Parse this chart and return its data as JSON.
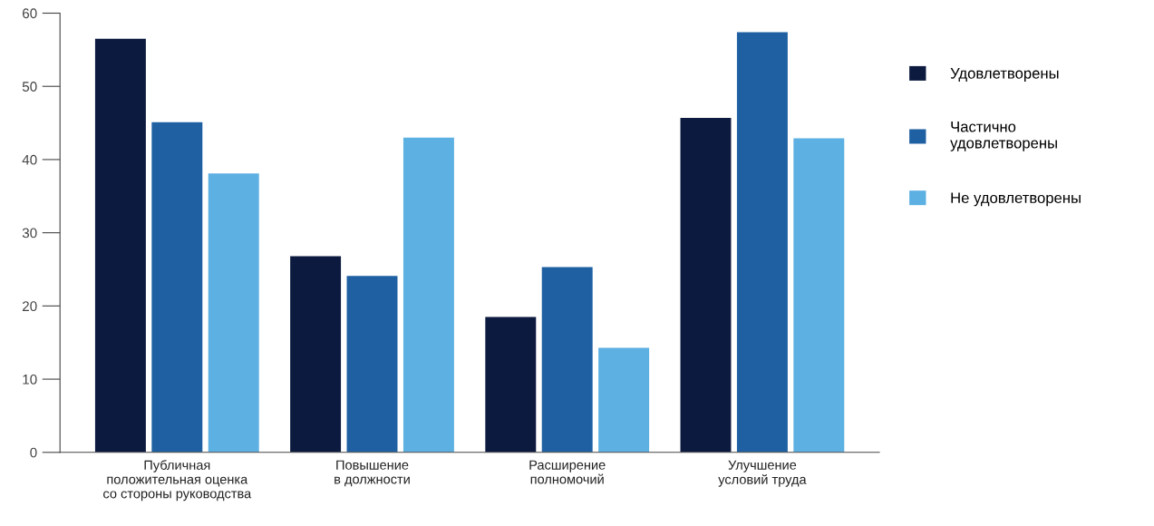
{
  "chart_data": {
    "type": "bar",
    "categories": [
      "Публичная\nположительная оценка\nсо стороны руководства",
      "Повышение\nв должности",
      "Расширение\nполномочий",
      "Улучшение\nусловий труда"
    ],
    "series": [
      {
        "name": "Удовлетворены",
        "color": "#0b1a3e",
        "values": [
          56.5,
          26.8,
          18.5,
          45.7
        ]
      },
      {
        "name": "Частично\nудовлетворены",
        "color": "#1f60a2",
        "values": [
          45.1,
          24.1,
          25.3,
          57.4
        ]
      },
      {
        "name": "Не удовлетворены",
        "color": "#5cb0e2",
        "values": [
          38.1,
          43.0,
          14.3,
          42.9
        ]
      }
    ],
    "ylim": [
      0,
      60
    ],
    "yticks": [
      0,
      10,
      20,
      30,
      40,
      50,
      60
    ],
    "grid": false,
    "legend": "right"
  }
}
